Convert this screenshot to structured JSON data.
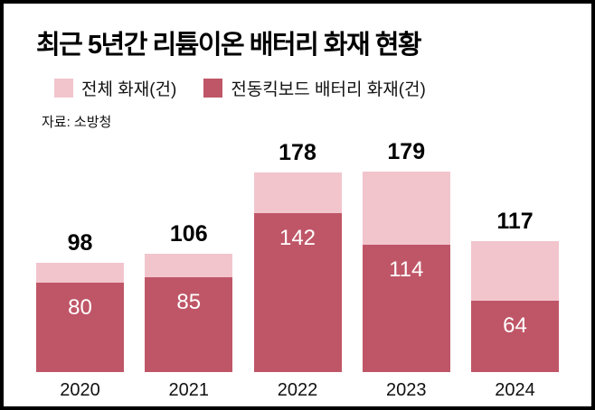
{
  "chart_data": {
    "type": "bar",
    "title": "최근 5년간 리튬이온 배터리 화재 현황",
    "source": "자료: 소방청",
    "categories": [
      "2020",
      "2021",
      "2022",
      "2023",
      "2024"
    ],
    "series": [
      {
        "name": "전체 화재(건)",
        "color": "#f2c5cd",
        "values": [
          98,
          106,
          178,
          179,
          117
        ]
      },
      {
        "name": "전동킥보드 배터리 화재(건)",
        "color": "#bf5667",
        "values": [
          80,
          85,
          142,
          114,
          64
        ]
      }
    ],
    "ylim": [
      0,
      200
    ],
    "legend_position": "top",
    "grid": false,
    "stacked": true
  },
  "colors": {
    "frame_border": "#000000",
    "background": "#ffffff",
    "total_segment": "#f2c5cd",
    "kickboard_segment": "#bf5667",
    "bar_value_text": "#ffffff",
    "text": "#000000"
  }
}
